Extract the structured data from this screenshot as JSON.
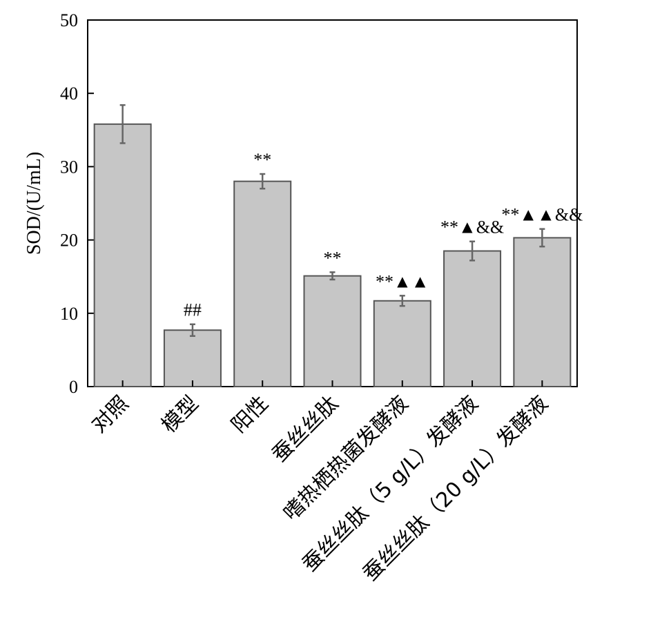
{
  "chart_data": {
    "type": "bar",
    "ylabel": "SOD/(U/mL)",
    "ylim": [
      0,
      50
    ],
    "yticks": [
      0,
      10,
      20,
      30,
      40,
      50
    ],
    "categories": [
      "对照",
      "模型",
      "阳性",
      "蚕丝丝肽",
      "嗜热栖热菌发酵液",
      "蚕丝丝肽（5 g/L）发酵液",
      "蚕丝丝肽（20 g/L）发酵液"
    ],
    "values": [
      35.8,
      7.7,
      28.0,
      15.1,
      11.7,
      18.5,
      20.3
    ],
    "errors": [
      2.6,
      0.8,
      1.0,
      0.5,
      0.7,
      1.3,
      1.2
    ],
    "annotations": [
      "",
      "##",
      "**",
      "**",
      "**▲▲",
      "**▲&&",
      "**▲▲&&"
    ],
    "bar_color": "#c6c6c6",
    "grid": false,
    "legend": "none"
  }
}
